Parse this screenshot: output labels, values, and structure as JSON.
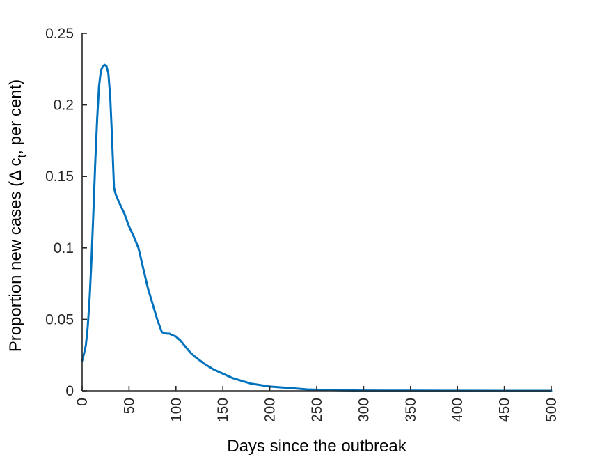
{
  "chart_data": {
    "type": "line",
    "xlabel": "Days since the outbreak",
    "ylabel_main": "Proportion new cases (Δ c",
    "ylabel_sub": "t",
    "ylabel_end": ", per cent)",
    "xlim": [
      0,
      500
    ],
    "ylim": [
      0,
      0.25
    ],
    "x_ticks": [
      "0",
      "50",
      "100",
      "150",
      "200",
      "250",
      "300",
      "350",
      "400",
      "450",
      "500"
    ],
    "y_ticks": [
      "0",
      "0.05",
      "0.1",
      "0.15",
      "0.2",
      "0.25"
    ],
    "grid": false,
    "series": [
      {
        "color": "#0072BD",
        "x": [
          0,
          2,
          4,
          6,
          8,
          10,
          12,
          14,
          16,
          18,
          20,
          22,
          24,
          26,
          28,
          30,
          32,
          34,
          36,
          40,
          45,
          50,
          55,
          60,
          65,
          70,
          75,
          80,
          85,
          90,
          93,
          96,
          100,
          105,
          110,
          115,
          120,
          130,
          140,
          150,
          160,
          170,
          180,
          190,
          200,
          210,
          220,
          230,
          240,
          250,
          260,
          270,
          280,
          300,
          325,
          350,
          400,
          450,
          500
        ],
        "y": [
          0.021,
          0.026,
          0.032,
          0.045,
          0.065,
          0.092,
          0.125,
          0.16,
          0.19,
          0.213,
          0.224,
          0.227,
          0.228,
          0.227,
          0.222,
          0.205,
          0.175,
          0.142,
          0.137,
          0.131,
          0.124,
          0.115,
          0.108,
          0.1,
          0.086,
          0.072,
          0.061,
          0.05,
          0.041,
          0.04,
          0.04,
          0.039,
          0.038,
          0.035,
          0.031,
          0.027,
          0.024,
          0.019,
          0.015,
          0.012,
          0.009,
          0.007,
          0.005,
          0.004,
          0.003,
          0.0025,
          0.002,
          0.0015,
          0.001,
          0.0008,
          0.0006,
          0.0004,
          0.0003,
          0.0002,
          0.0001,
          0.0001,
          5e-05,
          2e-05,
          0.0
        ]
      }
    ]
  }
}
